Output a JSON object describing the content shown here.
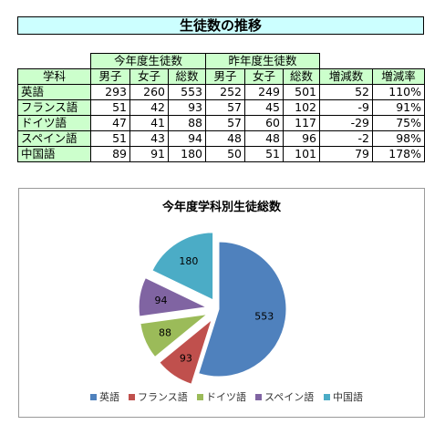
{
  "sheet": {
    "title": "生徒数の推移",
    "group_this_year": "今年度生徒数",
    "group_last_year": "昨年度生徒数",
    "col_subject": "学科",
    "col_male": "男子",
    "col_female": "女子",
    "col_total": "総数",
    "col_increase": "増減数",
    "col_rate": "増減率",
    "rows": [
      {
        "subject": "英語",
        "this_male": "293",
        "this_female": "260",
        "this_total": "553",
        "last_male": "252",
        "last_female": "249",
        "last_total": "501",
        "increase": "52",
        "rate": "110%"
      },
      {
        "subject": "フランス語",
        "this_male": "51",
        "this_female": "42",
        "this_total": "93",
        "last_male": "57",
        "last_female": "45",
        "last_total": "102",
        "increase": "-9",
        "rate": "91%"
      },
      {
        "subject": "ドイツ語",
        "this_male": "47",
        "this_female": "41",
        "this_total": "88",
        "last_male": "57",
        "last_female": "60",
        "last_total": "117",
        "increase": "-29",
        "rate": "75%"
      },
      {
        "subject": "スペイン語",
        "this_male": "51",
        "this_female": "43",
        "this_total": "94",
        "last_male": "48",
        "last_female": "48",
        "last_total": "96",
        "increase": "-2",
        "rate": "98%"
      },
      {
        "subject": "中国語",
        "this_male": "89",
        "this_female": "91",
        "this_total": "180",
        "last_male": "50",
        "last_female": "51",
        "last_total": "101",
        "increase": "79",
        "rate": "178%"
      }
    ]
  },
  "chart_data": {
    "type": "pie",
    "title": "今年度学科別生徒総数",
    "categories": [
      "英語",
      "フランス語",
      "ドイツ語",
      "スペイン語",
      "中国語"
    ],
    "values": [
      553,
      93,
      88,
      94,
      180
    ],
    "colors": [
      "#4f81bd",
      "#c0504d",
      "#9bbb59",
      "#8064a2",
      "#4bacc6"
    ],
    "exploded": true,
    "data_labels": true,
    "legend_position": "bottom"
  }
}
